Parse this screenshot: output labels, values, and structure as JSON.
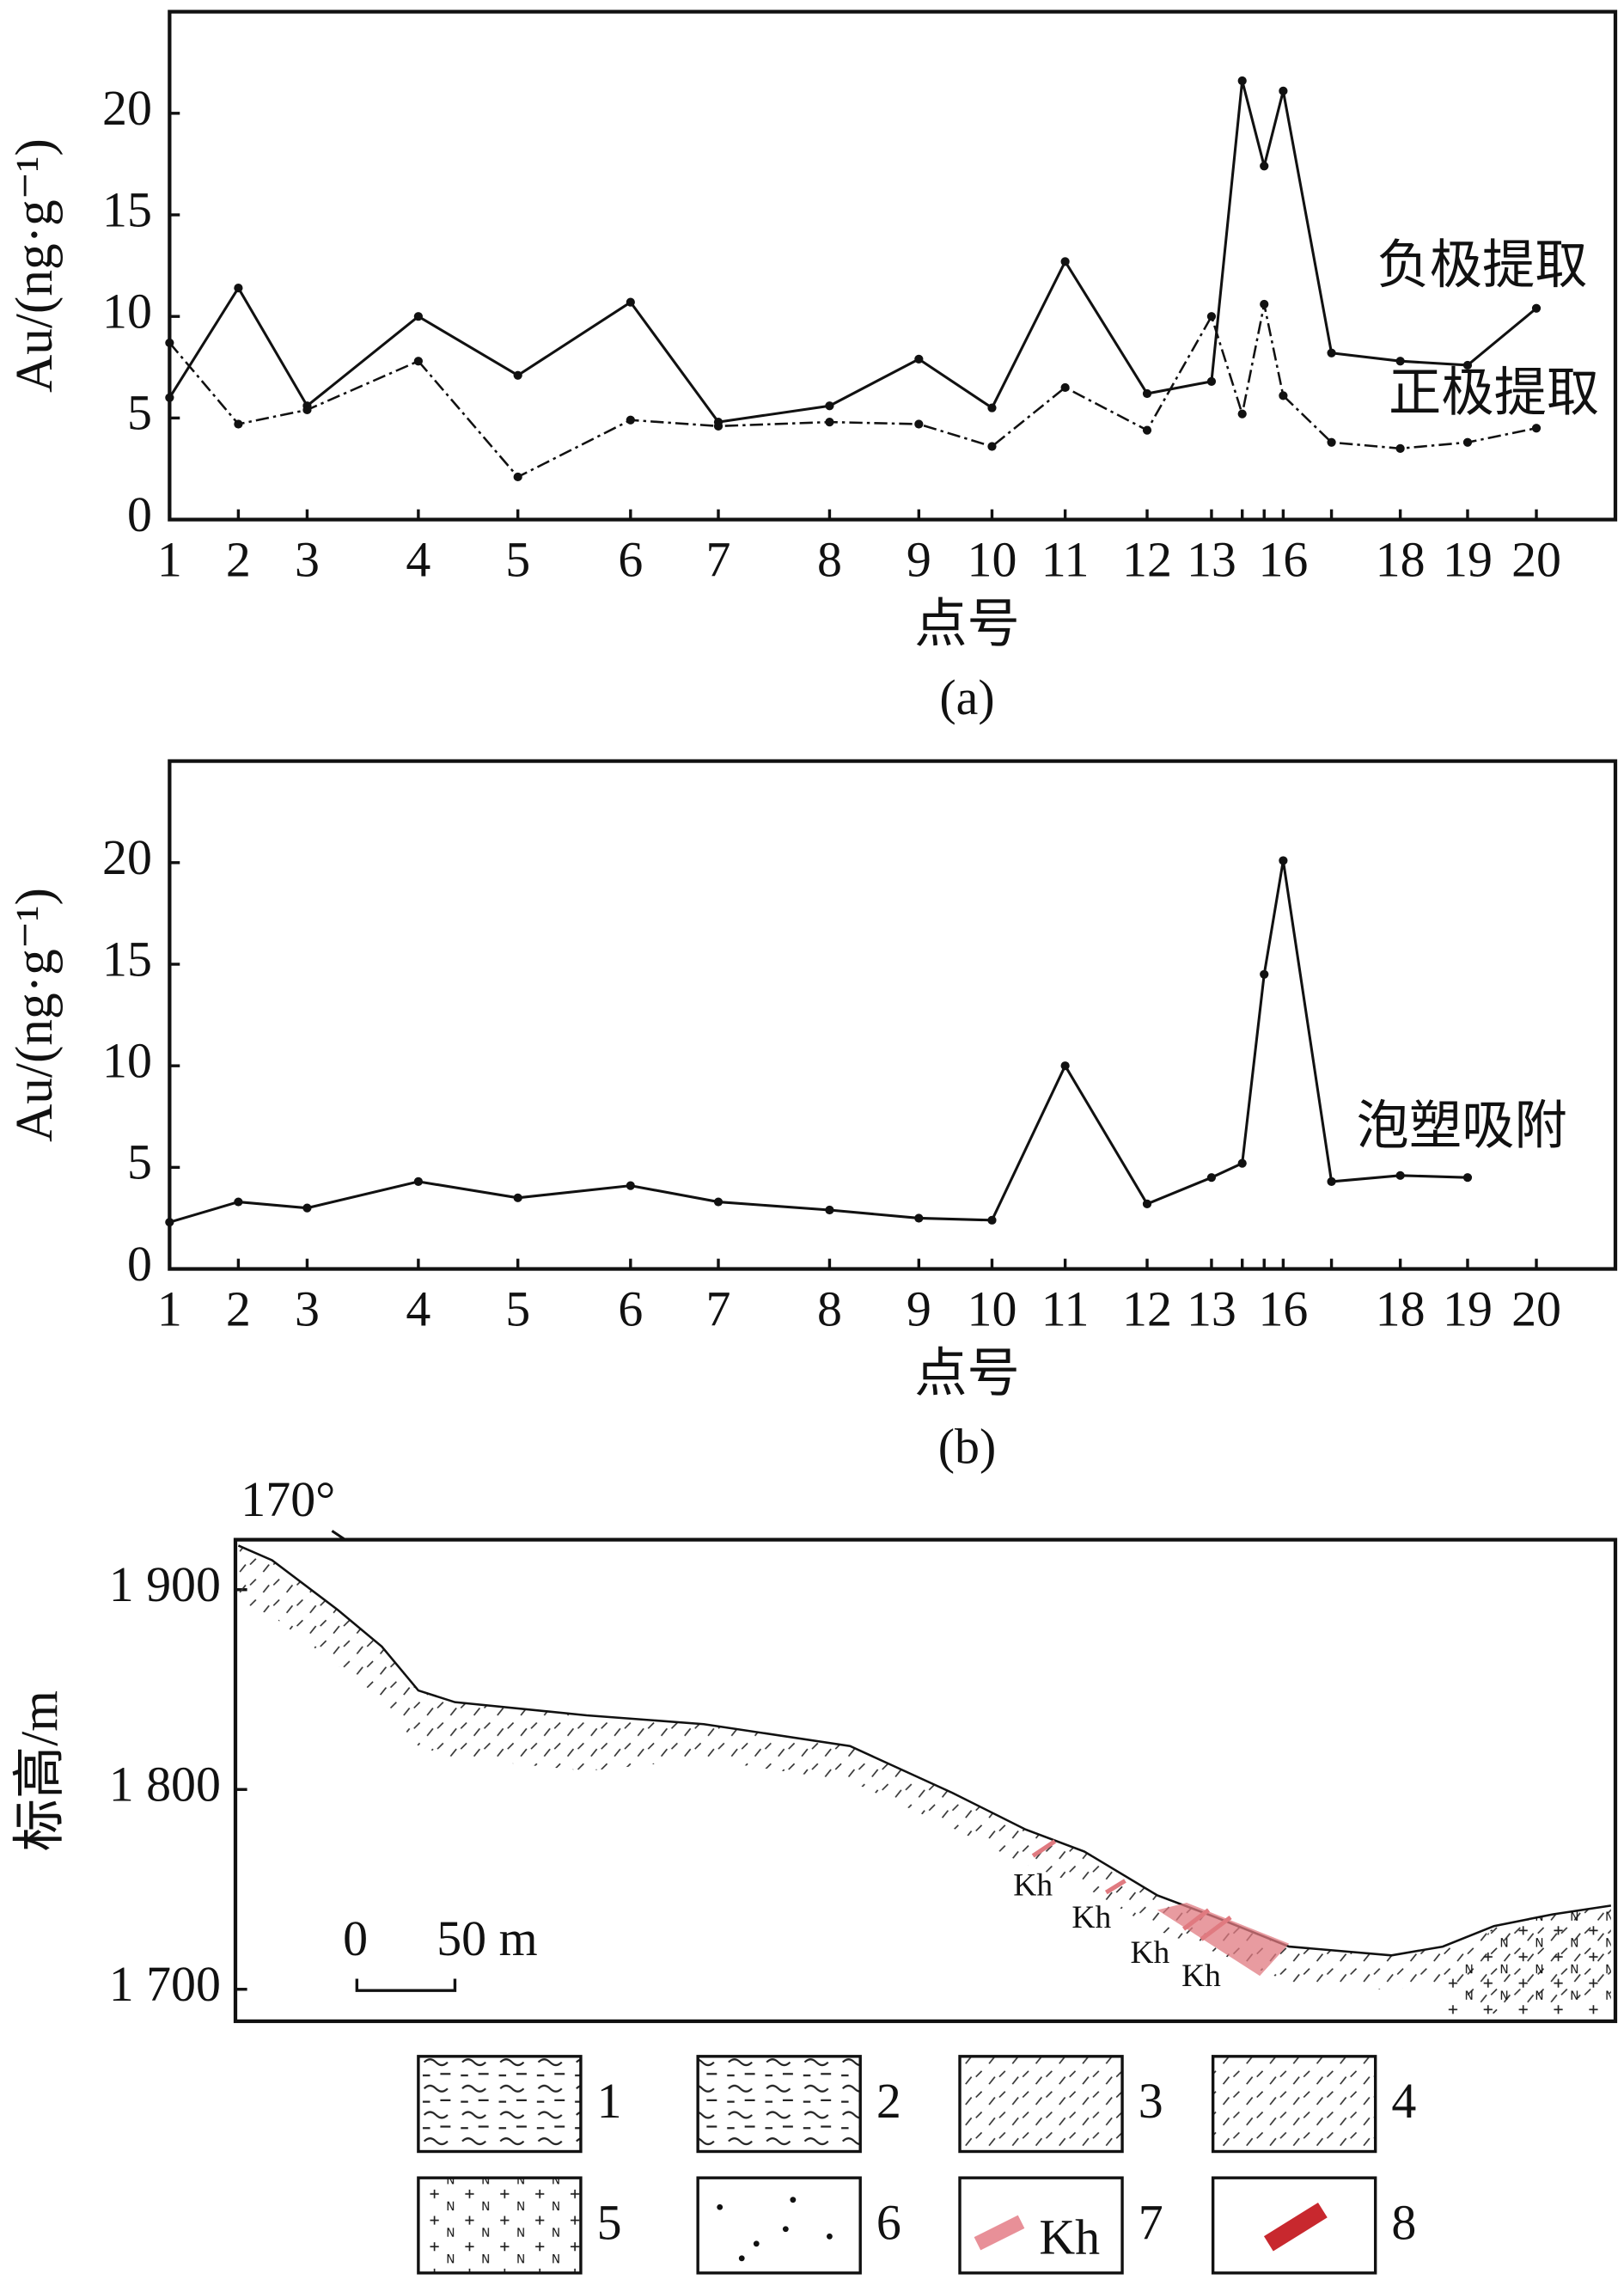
{
  "chart_data": [
    {
      "type": "line",
      "caption": "(a)",
      "xlabel": "点号",
      "ylabel": "Au/(ng·g⁻¹)",
      "categories": [
        "1",
        "2",
        "3",
        "4",
        "5",
        "6",
        "7",
        "8",
        "9",
        "10",
        "11",
        "12",
        "13",
        null,
        null,
        "16",
        null,
        "18",
        "19",
        "20"
      ],
      "series": [
        {
          "name": "负极提取",
          "color": "#111111",
          "line_style": "solid",
          "values": [
            6.0,
            11.4,
            5.6,
            10.0,
            7.1,
            10.7,
            4.8,
            5.6,
            7.9,
            5.5,
            12.7,
            6.2,
            6.8,
            21.6,
            17.4,
            21.1,
            8.2,
            7.8,
            7.6,
            10.4
          ]
        },
        {
          "name": "正极提取",
          "color": "#111111",
          "line_style": "dashdot",
          "values": [
            8.7,
            4.7,
            5.4,
            7.8,
            2.1,
            4.9,
            4.6,
            4.8,
            4.7,
            3.6,
            6.5,
            4.4,
            10.0,
            5.2,
            10.6,
            6.1,
            3.8,
            3.5,
            3.8,
            4.5
          ]
        }
      ],
      "ylim": [
        0,
        25
      ],
      "yticks": [
        0,
        5,
        10,
        15,
        20
      ]
    },
    {
      "type": "line",
      "caption": "(b)",
      "xlabel": "点号",
      "ylabel": "Au/(ng·g⁻¹)",
      "categories": [
        "1",
        "2",
        "3",
        "4",
        "5",
        "6",
        "7",
        "8",
        "9",
        "10",
        "11",
        "12",
        "13",
        null,
        null,
        "16",
        null,
        "18",
        "19",
        "20"
      ],
      "series": [
        {
          "name": "泡塑吸附",
          "color": "#111111",
          "line_style": "solid",
          "values": [
            2.3,
            3.3,
            3.0,
            4.3,
            3.5,
            4.1,
            3.3,
            2.9,
            2.5,
            2.4,
            10.0,
            3.2,
            4.5,
            5.2,
            14.5,
            20.1,
            4.3,
            4.6,
            4.5,
            null
          ]
        }
      ],
      "ylim": [
        0,
        25
      ],
      "yticks": [
        0,
        5,
        10,
        15,
        20
      ]
    }
  ],
  "section": {
    "direction": "170°",
    "ylabel": "标高/m",
    "ylim": [
      1684,
      1925
    ],
    "yticks": [
      {
        "value": 1700,
        "label": "1 700"
      },
      {
        "value": 1800,
        "label": "1 800"
      },
      {
        "value": 1900,
        "label": "1 900"
      }
    ],
    "scale_labels": [
      "0",
      "50 m"
    ],
    "ore_labels": [
      "Kh",
      "Kh",
      "Kh",
      "Kh"
    ],
    "legend": [
      {
        "number": "1"
      },
      {
        "number": "2"
      },
      {
        "number": "3"
      },
      {
        "number": "4"
      },
      {
        "number": "5"
      },
      {
        "number": "6"
      },
      {
        "number": "7",
        "text": "Kh"
      },
      {
        "number": "8"
      }
    ]
  }
}
